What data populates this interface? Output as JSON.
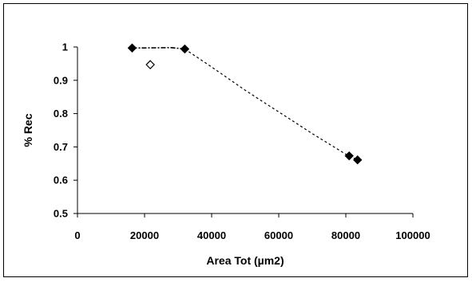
{
  "chart_data": {
    "type": "scatter",
    "title": "",
    "xlabel": "Area Tot (µm2)",
    "ylabel": "% Rec",
    "xlim": [
      0,
      100000
    ],
    "ylim": [
      0.5,
      1.0
    ],
    "x_ticks": [
      0,
      20000,
      40000,
      60000,
      80000,
      100000
    ],
    "y_ticks": [
      0.5,
      0.6,
      0.7,
      0.8,
      0.9,
      1.0
    ],
    "x_tick_labels": [
      "0",
      "20000",
      "40000",
      "60000",
      "80000",
      "100000"
    ],
    "y_tick_labels": [
      "0.5",
      "0.6",
      "0.7",
      "0.8",
      "0.9",
      "1"
    ],
    "grid": false,
    "legend": "none",
    "series": [
      {
        "marker": "filled-diamond",
        "color": "#000000",
        "points": [
          {
            "x": 16300,
            "y": 0.997
          },
          {
            "x": 32000,
            "y": 0.994
          },
          {
            "x": 81000,
            "y": 0.673
          },
          {
            "x": 83500,
            "y": 0.661
          }
        ]
      },
      {
        "marker": "open-diamond",
        "color": "#000000",
        "points": [
          {
            "x": 21700,
            "y": 0.947
          }
        ]
      }
    ],
    "trend_lines": [
      {
        "style": "dash-dot",
        "points": [
          {
            "x": 16300,
            "y": 0.997
          },
          {
            "x": 28000,
            "y": 0.998
          },
          {
            "x": 32000,
            "y": 0.994
          }
        ]
      },
      {
        "style": "dashed",
        "points": [
          {
            "x": 32000,
            "y": 0.994
          },
          {
            "x": 40000,
            "y": 0.94
          },
          {
            "x": 50000,
            "y": 0.87
          },
          {
            "x": 60000,
            "y": 0.805
          },
          {
            "x": 70000,
            "y": 0.74
          },
          {
            "x": 80000,
            "y": 0.678
          },
          {
            "x": 83500,
            "y": 0.661
          }
        ]
      }
    ]
  }
}
